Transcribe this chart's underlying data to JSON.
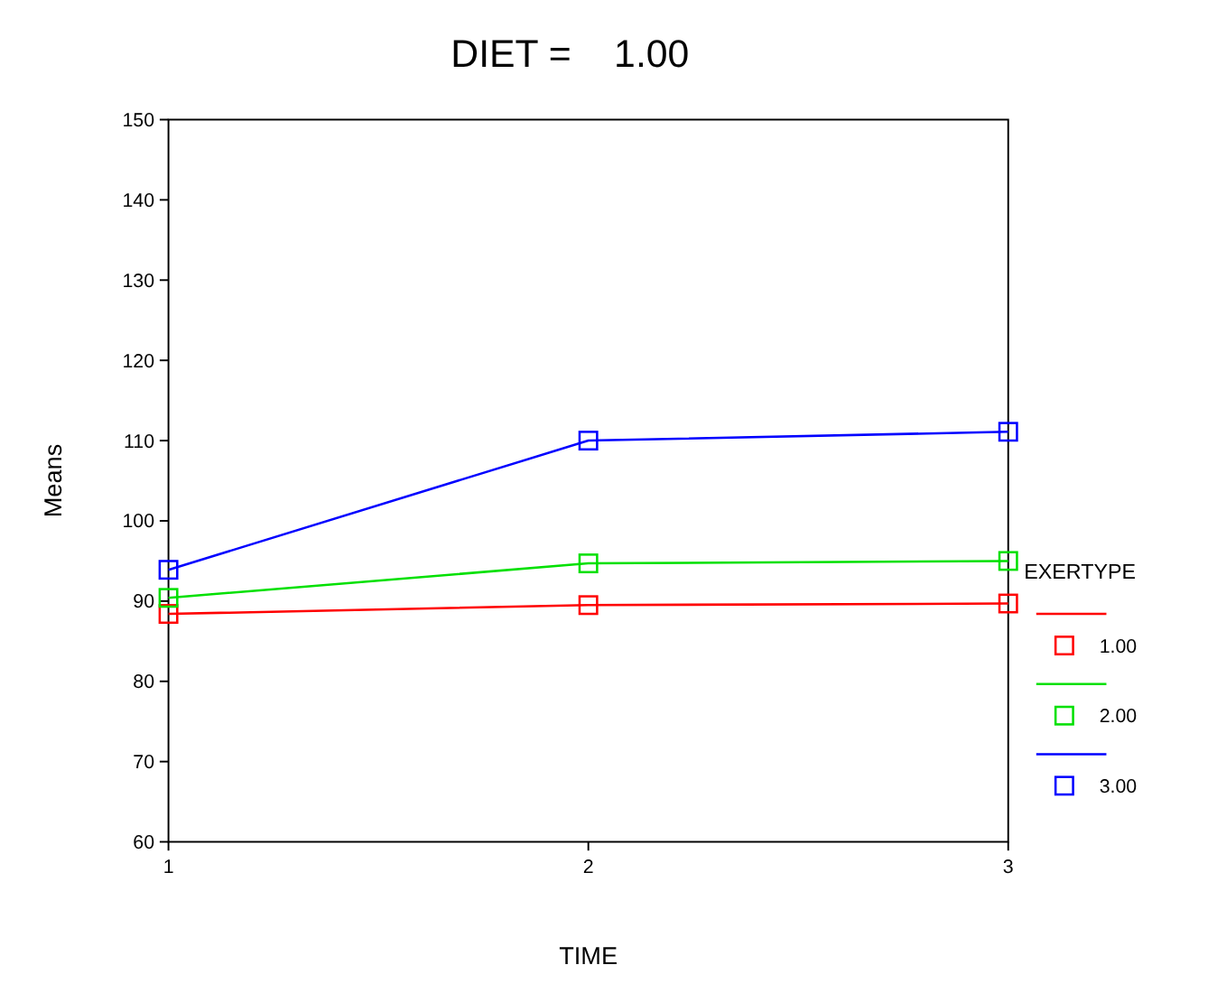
{
  "chart_data": {
    "type": "line",
    "title": "DIET =    1.00",
    "xlabel": "TIME",
    "ylabel": "Means",
    "legend_title": "EXERTYPE",
    "x": [
      1,
      2,
      3
    ],
    "series": [
      {
        "name": "1.00",
        "color": "#ff0000",
        "values": [
          88.4,
          89.5,
          89.7
        ]
      },
      {
        "name": "2.00",
        "color": "#00e000",
        "values": [
          90.4,
          94.7,
          95.0
        ]
      },
      {
        "name": "3.00",
        "color": "#0000ff",
        "values": [
          93.9,
          110.0,
          111.1
        ]
      }
    ],
    "xlim": [
      1,
      3
    ],
    "xticks": [
      1,
      2,
      3
    ],
    "ylim": [
      60,
      150
    ],
    "yticks": [
      60,
      70,
      80,
      90,
      100,
      110,
      120,
      130,
      140,
      150
    ],
    "grid": false,
    "legend": "right",
    "marker": "square",
    "line_style": "solid"
  }
}
